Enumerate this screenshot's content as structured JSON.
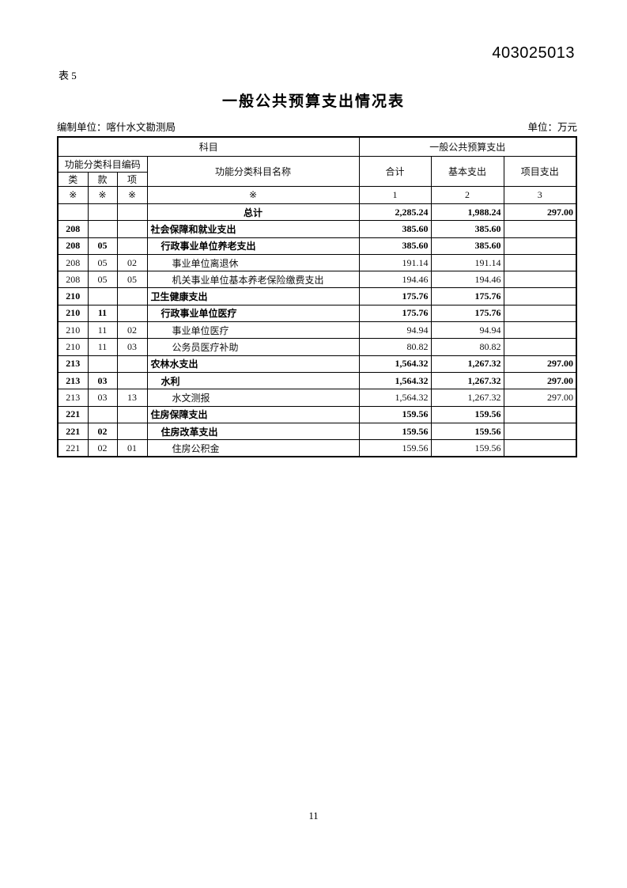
{
  "page": {
    "doc_number": "403025013",
    "table_label": "表 5",
    "title": "一般公共预算支出情况表",
    "prepared_by_label": "编制单位：喀什水文勘测局",
    "unit_label": "单位：万元",
    "page_number": "11"
  },
  "table": {
    "header": {
      "subject": "科目",
      "budget_group": "一般公共预算支出",
      "code_group": "功能分类科目编码",
      "col_class": "类",
      "col_section": "款",
      "col_item": "项",
      "col_name": "功能分类科目名称",
      "col_total": "合计",
      "col_basic": "基本支出",
      "col_project": "项目支出",
      "placeholder_row": [
        "※",
        "※",
        "※",
        "※",
        "1",
        "2",
        "3"
      ]
    },
    "rows": [
      {
        "cls": "",
        "sec": "",
        "itm": "",
        "name": "总计",
        "total": "2,285.24",
        "basic": "1,988.24",
        "project": "297.00",
        "bold": true,
        "indent": 0,
        "name_align": "center"
      },
      {
        "cls": "208",
        "sec": "",
        "itm": "",
        "name": "社会保障和就业支出",
        "total": "385.60",
        "basic": "385.60",
        "project": "",
        "bold": true,
        "indent": 0,
        "name_align": "left"
      },
      {
        "cls": "208",
        "sec": "05",
        "itm": "",
        "name": "行政事业单位养老支出",
        "total": "385.60",
        "basic": "385.60",
        "project": "",
        "bold": true,
        "indent": 1,
        "name_align": "left"
      },
      {
        "cls": "208",
        "sec": "05",
        "itm": "02",
        "name": "事业单位离退休",
        "total": "191.14",
        "basic": "191.14",
        "project": "",
        "bold": false,
        "indent": 2,
        "name_align": "left"
      },
      {
        "cls": "208",
        "sec": "05",
        "itm": "05",
        "name": "机关事业单位基本养老保险缴费支出",
        "total": "194.46",
        "basic": "194.46",
        "project": "",
        "bold": false,
        "indent": 2,
        "name_align": "left"
      },
      {
        "cls": "210",
        "sec": "",
        "itm": "",
        "name": "卫生健康支出",
        "total": "175.76",
        "basic": "175.76",
        "project": "",
        "bold": true,
        "indent": 0,
        "name_align": "left"
      },
      {
        "cls": "210",
        "sec": "11",
        "itm": "",
        "name": "行政事业单位医疗",
        "total": "175.76",
        "basic": "175.76",
        "project": "",
        "bold": true,
        "indent": 1,
        "name_align": "left"
      },
      {
        "cls": "210",
        "sec": "11",
        "itm": "02",
        "name": "事业单位医疗",
        "total": "94.94",
        "basic": "94.94",
        "project": "",
        "bold": false,
        "indent": 2,
        "name_align": "left"
      },
      {
        "cls": "210",
        "sec": "11",
        "itm": "03",
        "name": "公务员医疗补助",
        "total": "80.82",
        "basic": "80.82",
        "project": "",
        "bold": false,
        "indent": 2,
        "name_align": "left"
      },
      {
        "cls": "213",
        "sec": "",
        "itm": "",
        "name": "农林水支出",
        "total": "1,564.32",
        "basic": "1,267.32",
        "project": "297.00",
        "bold": true,
        "indent": 0,
        "name_align": "left"
      },
      {
        "cls": "213",
        "sec": "03",
        "itm": "",
        "name": "水利",
        "total": "1,564.32",
        "basic": "1,267.32",
        "project": "297.00",
        "bold": true,
        "indent": 1,
        "name_align": "left"
      },
      {
        "cls": "213",
        "sec": "03",
        "itm": "13",
        "name": "水文测报",
        "total": "1,564.32",
        "basic": "1,267.32",
        "project": "297.00",
        "bold": false,
        "indent": 2,
        "name_align": "left"
      },
      {
        "cls": "221",
        "sec": "",
        "itm": "",
        "name": "住房保障支出",
        "total": "159.56",
        "basic": "159.56",
        "project": "",
        "bold": true,
        "indent": 0,
        "name_align": "left"
      },
      {
        "cls": "221",
        "sec": "02",
        "itm": "",
        "name": "住房改革支出",
        "total": "159.56",
        "basic": "159.56",
        "project": "",
        "bold": true,
        "indent": 1,
        "name_align": "left"
      },
      {
        "cls": "221",
        "sec": "02",
        "itm": "01",
        "name": "住房公积金",
        "total": "159.56",
        "basic": "159.56",
        "project": "",
        "bold": false,
        "indent": 2,
        "name_align": "left"
      }
    ]
  }
}
